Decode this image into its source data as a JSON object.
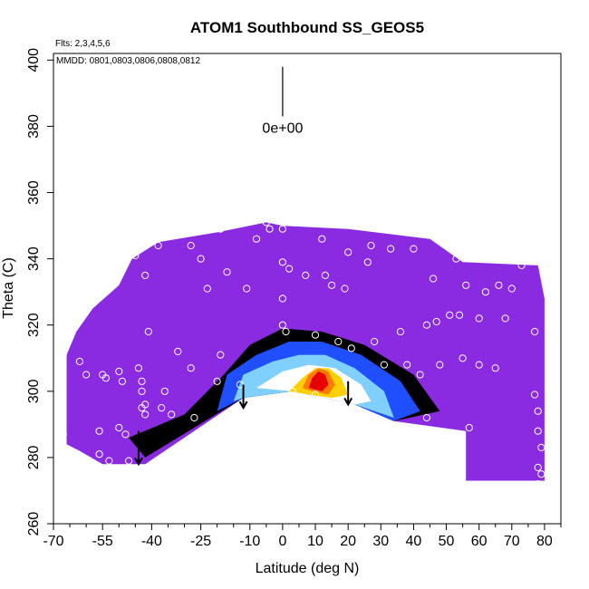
{
  "chart_data": {
    "type": "heatmap",
    "title": "ATOM1 Southbound SS_GEOS5",
    "flights_text": "Flts: 2,3,4,5,6",
    "mmdd_text": "MMDD: 0801,0803,0806,0808,0812",
    "xlabel": "Latitude (deg N)",
    "ylabel": "Theta (C)",
    "xlim": [
      -70,
      85
    ],
    "ylim": [
      260,
      402
    ],
    "x_ticks": [
      -70,
      -55,
      -40,
      -25,
      -10,
      0,
      10,
      20,
      30,
      40,
      50,
      60,
      70,
      80
    ],
    "x_minor_ticks": [
      -65,
      -60,
      -50,
      -45,
      -35,
      -30,
      -20,
      -15,
      -5,
      5,
      15,
      25,
      35,
      45,
      55,
      65,
      75,
      85
    ],
    "y_ticks": [
      260,
      280,
      300,
      320,
      340,
      360,
      380,
      400
    ],
    "scale_label": "0e+00",
    "scale_bar": {
      "x": 0,
      "y_from": 383,
      "y_to": 398
    },
    "colors": {
      "background_field": "#8a2be2",
      "cool_edge": "#3322cc",
      "blue": "#1f4fff",
      "light_blue": "#7fd0ff",
      "white": "#ffffff",
      "yellow": "#ffd000",
      "orange": "#ff7a00",
      "red": "#e60000"
    },
    "field_envelope": [
      [
        -66,
        311
      ],
      [
        -63,
        318
      ],
      [
        -58,
        325
      ],
      [
        -50,
        332
      ],
      [
        -46,
        340
      ],
      [
        -38,
        345
      ],
      [
        -20,
        348
      ],
      [
        -5,
        351
      ],
      [
        0,
        350
      ],
      [
        20,
        349
      ],
      [
        45,
        346
      ],
      [
        55,
        339
      ],
      [
        78,
        338
      ],
      [
        80,
        328
      ],
      [
        80,
        273
      ],
      [
        56,
        273
      ],
      [
        56,
        288
      ],
      [
        34,
        291
      ],
      [
        22,
        296
      ],
      [
        3,
        300
      ],
      [
        -12,
        298
      ],
      [
        -42,
        278
      ],
      [
        -55,
        278
      ],
      [
        -62,
        282
      ],
      [
        -66,
        284
      ]
    ],
    "anomaly_contours": [
      {
        "level": "cool",
        "points": [
          [
            -47,
            286
          ],
          [
            -30,
            293
          ],
          [
            -18,
            305
          ],
          [
            -10,
            314
          ],
          [
            0,
            319
          ],
          [
            12,
            318
          ],
          [
            25,
            314
          ],
          [
            40,
            305
          ],
          [
            48,
            294
          ],
          [
            34,
            291
          ],
          [
            22,
            296
          ],
          [
            3,
            300
          ],
          [
            -12,
            298
          ],
          [
            -42,
            280
          ]
        ]
      },
      {
        "level": "blue",
        "points": [
          [
            -20,
            294
          ],
          [
            -17,
            305
          ],
          [
            -8,
            311
          ],
          [
            2,
            315
          ],
          [
            12,
            315
          ],
          [
            24,
            311
          ],
          [
            36,
            303
          ],
          [
            42,
            294
          ],
          [
            34,
            291
          ],
          [
            22,
            296
          ],
          [
            3,
            300
          ],
          [
            -12,
            298
          ]
        ]
      },
      {
        "level": "light_blue",
        "points": [
          [
            -15,
            297
          ],
          [
            -12,
            305
          ],
          [
            -3,
            309
          ],
          [
            5,
            311
          ],
          [
            13,
            311
          ],
          [
            22,
            307
          ],
          [
            31,
            300
          ],
          [
            34,
            292
          ],
          [
            22,
            296
          ],
          [
            3,
            300
          ],
          [
            -12,
            298
          ]
        ]
      },
      {
        "level": "white",
        "points": [
          [
            -8,
            301
          ],
          [
            0,
            306
          ],
          [
            8,
            308
          ],
          [
            16,
            307
          ],
          [
            24,
            302
          ],
          [
            27,
            297
          ],
          [
            22,
            296
          ],
          [
            3,
            300
          ]
        ]
      },
      {
        "level": "yellow",
        "points": [
          [
            2,
            300
          ],
          [
            6,
            304
          ],
          [
            10,
            307
          ],
          [
            14,
            307
          ],
          [
            18,
            304
          ],
          [
            20,
            299
          ],
          [
            15,
            298
          ],
          [
            8,
            299
          ]
        ]
      },
      {
        "level": "orange",
        "points": [
          [
            6,
            301
          ],
          [
            8,
            305
          ],
          [
            11,
            307
          ],
          [
            14,
            306
          ],
          [
            16,
            302
          ],
          [
            14,
            299
          ],
          [
            9,
            300
          ]
        ]
      },
      {
        "level": "red",
        "points": [
          [
            8,
            301
          ],
          [
            9,
            304
          ],
          [
            11,
            306
          ],
          [
            13,
            305
          ],
          [
            14,
            302
          ],
          [
            12,
            300
          ]
        ]
      }
    ],
    "tropopause_arrows": [
      {
        "lat": -44,
        "theta_top": 288,
        "theta_bottom": 278
      },
      {
        "lat": -12,
        "theta_top": 302,
        "theta_bottom": 295
      },
      {
        "lat": 20,
        "theta_top": 303,
        "theta_bottom": 296
      }
    ],
    "sample_points": [
      [
        -66,
        314
      ],
      [
        -67,
        311
      ],
      [
        -67,
        287
      ],
      [
        -62,
        309
      ],
      [
        -60,
        305
      ],
      [
        -56,
        288
      ],
      [
        -55,
        305
      ],
      [
        -54,
        304
      ],
      [
        -50,
        306
      ],
      [
        -50,
        289
      ],
      [
        -49,
        303
      ],
      [
        -48,
        287
      ],
      [
        -47,
        279
      ],
      [
        -45,
        341
      ],
      [
        -44,
        307
      ],
      [
        -43,
        303
      ],
      [
        -43,
        300
      ],
      [
        -42,
        296
      ],
      [
        -43,
        295
      ],
      [
        -42,
        293
      ],
      [
        -42,
        335
      ],
      [
        -41,
        318
      ],
      [
        -36,
        300
      ],
      [
        -38,
        344
      ],
      [
        -34,
        293
      ],
      [
        -32,
        312
      ],
      [
        -28,
        344
      ],
      [
        -28,
        307
      ],
      [
        -25,
        340
      ],
      [
        -23,
        331
      ],
      [
        -20,
        303
      ],
      [
        -19,
        311
      ],
      [
        -19,
        349
      ],
      [
        -17,
        336
      ],
      [
        -13,
        302
      ],
      [
        -11,
        331
      ],
      [
        -8,
        346
      ],
      [
        -5,
        351
      ],
      [
        -4,
        349
      ],
      [
        0,
        349
      ],
      [
        0,
        339
      ],
      [
        0,
        328
      ],
      [
        0,
        320
      ],
      [
        1,
        318
      ],
      [
        2,
        337
      ],
      [
        3,
        300
      ],
      [
        7,
        335
      ],
      [
        10,
        317
      ],
      [
        10,
        299
      ],
      [
        12,
        346
      ],
      [
        13,
        335
      ],
      [
        15,
        332
      ],
      [
        17,
        315
      ],
      [
        19,
        331
      ],
      [
        20,
        342
      ],
      [
        21,
        313
      ],
      [
        26,
        339
      ],
      [
        27,
        344
      ],
      [
        28,
        315
      ],
      [
        31,
        308
      ],
      [
        33,
        343
      ],
      [
        36,
        318
      ],
      [
        38,
        308
      ],
      [
        40,
        343
      ],
      [
        42,
        305
      ],
      [
        44,
        320
      ],
      [
        44,
        292
      ],
      [
        46,
        334
      ],
      [
        47,
        321
      ],
      [
        48,
        308
      ],
      [
        51,
        323
      ],
      [
        53,
        340
      ],
      [
        54,
        323
      ],
      [
        55,
        310
      ],
      [
        56,
        332
      ],
      [
        57,
        289
      ],
      [
        60,
        322
      ],
      [
        60,
        308
      ],
      [
        62,
        330
      ],
      [
        65,
        307
      ],
      [
        66,
        332
      ],
      [
        68,
        322
      ],
      [
        70,
        331
      ],
      [
        73,
        338
      ],
      [
        77,
        318
      ],
      [
        77,
        299
      ],
      [
        78,
        294
      ],
      [
        78,
        288
      ],
      [
        79,
        283
      ],
      [
        78,
        277
      ],
      [
        79,
        275
      ],
      [
        78,
        272
      ],
      [
        -56,
        281
      ],
      [
        -53,
        279
      ],
      [
        -37,
        295
      ],
      [
        -27,
        292
      ],
      [
        1,
        296
      ]
    ]
  }
}
